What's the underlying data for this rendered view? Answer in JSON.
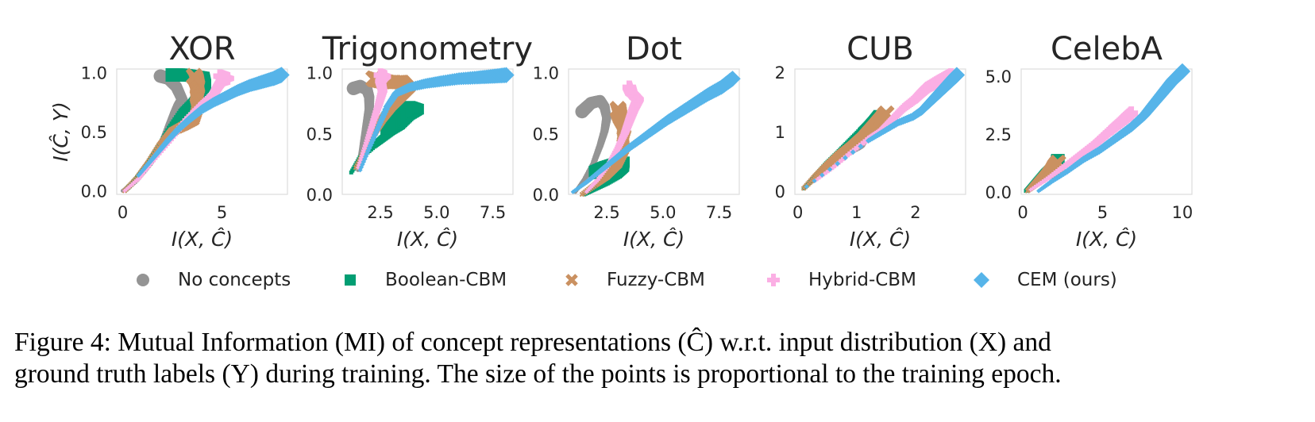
{
  "figure": {
    "caption_line1": "Figure 4: Mutual Information (MI) of concept representations (Ĉ) w.r.t. input distribution (X) and",
    "caption_line2": "ground truth labels (Y) during training. The size of the points is proportional to the training epoch."
  },
  "legend": [
    {
      "label": "No concepts",
      "marker": "circle",
      "color": "#949494"
    },
    {
      "label": "Boolean-CBM",
      "marker": "square",
      "color": "#029e73"
    },
    {
      "label": "Fuzzy-CBM",
      "marker": "x",
      "color": "#ca9161"
    },
    {
      "label": "Hybrid-CBM",
      "marker": "plus",
      "color": "#fbafe4"
    },
    {
      "label": "CEM (ours)",
      "marker": "diamond",
      "color": "#56b4e9"
    }
  ],
  "chart_data": [
    {
      "type": "scatter",
      "title": "XOR",
      "xlabel": "I(X, Ĉ)",
      "ylabel": "I(Ĉ, Y)",
      "xlim": [
        -0.3,
        8.3
      ],
      "ylim": [
        -0.03,
        1.03
      ],
      "xticks": [
        0,
        5
      ],
      "xtick_labels": [
        "0",
        "5"
      ],
      "yticks": [
        0.0,
        0.5,
        1.0
      ],
      "ytick_labels": [
        "0.0",
        "0.5",
        "1.0"
      ],
      "grid": false,
      "series": [
        {
          "name": "No concepts",
          "x": [
            0.0,
            0.5,
            1.0,
            1.5,
            1.9,
            2.3,
            2.6,
            2.8,
            3.0,
            2.7,
            2.3,
            1.9
          ],
          "y": [
            0.0,
            0.06,
            0.17,
            0.28,
            0.36,
            0.53,
            0.65,
            0.72,
            0.77,
            0.88,
            0.95,
            0.97
          ]
        },
        {
          "name": "Boolean-CBM",
          "x": [
            0.1,
            0.6,
            1.2,
            1.8,
            2.4,
            3.0,
            3.5,
            3.9,
            4.2,
            4.1,
            3.6,
            3.0,
            2.5
          ],
          "y": [
            0.0,
            0.08,
            0.2,
            0.35,
            0.52,
            0.66,
            0.74,
            0.82,
            0.9,
            0.96,
            0.97,
            0.98,
            0.98
          ]
        },
        {
          "name": "Fuzzy-CBM",
          "x": [
            0.1,
            0.7,
            1.3,
            1.9,
            2.5,
            3.1,
            3.6,
            3.8,
            3.7,
            3.8,
            3.7,
            3.6
          ],
          "y": [
            0.0,
            0.1,
            0.23,
            0.38,
            0.5,
            0.55,
            0.6,
            0.72,
            0.8,
            0.88,
            0.94,
            0.97
          ]
        },
        {
          "name": "Hybrid-CBM",
          "x": [
            0.1,
            0.8,
            1.6,
            2.4,
            3.2,
            4.0,
            4.6,
            4.8,
            5.0,
            5.3,
            4.9
          ],
          "y": [
            0.0,
            0.1,
            0.27,
            0.43,
            0.6,
            0.73,
            0.82,
            0.88,
            0.93,
            0.95,
            0.97
          ]
        },
        {
          "name": "CEM (ours)",
          "x": [
            0.8,
            1.3,
            1.8,
            2.3,
            2.8,
            3.4,
            4.0,
            4.6,
            5.2,
            5.8,
            6.4,
            7.0,
            7.6,
            8.0
          ],
          "y": [
            0.13,
            0.23,
            0.33,
            0.43,
            0.52,
            0.61,
            0.69,
            0.75,
            0.8,
            0.85,
            0.89,
            0.92,
            0.95,
            0.98
          ]
        }
      ]
    },
    {
      "type": "scatter",
      "title": "Trigonometry",
      "xlabel": "I(X, Ĉ)",
      "ylabel": "",
      "xlim": [
        0.8,
        8.4
      ],
      "ylim": [
        0.0,
        1.03
      ],
      "xticks": [
        2.5,
        5.0,
        7.5
      ],
      "xtick_labels": [
        "2.5",
        "5.0",
        "7.5"
      ],
      "yticks": [
        0.0,
        0.5,
        1.0
      ],
      "ytick_labels": [
        "0.0",
        "0.5",
        "1.0"
      ],
      "grid": false,
      "series": [
        {
          "name": "No concepts",
          "x": [
            1.5,
            1.6,
            1.7,
            1.8,
            1.9,
            2.0,
            2.0,
            1.9,
            1.6,
            1.3
          ],
          "y": [
            0.2,
            0.3,
            0.4,
            0.5,
            0.6,
            0.7,
            0.8,
            0.86,
            0.89,
            0.87
          ]
        },
        {
          "name": "Boolean-CBM",
          "x": [
            1.2,
            1.6,
            2.2,
            2.6,
            3.0,
            3.4,
            3.8,
            4.2,
            3.8,
            3.2,
            2.8
          ],
          "y": [
            0.18,
            0.3,
            0.4,
            0.46,
            0.52,
            0.57,
            0.65,
            0.7,
            0.72,
            0.64,
            0.55
          ]
        },
        {
          "name": "Fuzzy-CBM",
          "x": [
            1.4,
            1.8,
            2.2,
            2.6,
            3.0,
            3.4,
            3.8,
            3.5,
            3.0,
            2.6,
            2.2
          ],
          "y": [
            0.22,
            0.35,
            0.5,
            0.62,
            0.72,
            0.8,
            0.88,
            0.93,
            0.92,
            0.93,
            0.95
          ]
        },
        {
          "name": "Hybrid-CBM",
          "x": [
            1.5,
            1.8,
            2.1,
            2.4,
            2.6,
            2.5,
            2.7,
            2.5
          ],
          "y": [
            0.22,
            0.38,
            0.55,
            0.72,
            0.85,
            0.93,
            0.97,
            0.98
          ]
        },
        {
          "name": "CEM (ours)",
          "x": [
            1.6,
            2.0,
            2.4,
            2.8,
            3.2,
            3.8,
            4.5,
            5.2,
            6.0,
            6.8,
            7.5,
            8.1
          ],
          "y": [
            0.2,
            0.38,
            0.55,
            0.72,
            0.83,
            0.88,
            0.91,
            0.93,
            0.95,
            0.96,
            0.97,
            0.98
          ]
        }
      ]
    },
    {
      "type": "scatter",
      "title": "Dot",
      "xlabel": "I(X, Ĉ)",
      "ylabel": "",
      "xlim": [
        0.8,
        8.4
      ],
      "ylim": [
        0.0,
        1.03
      ],
      "xticks": [
        2.5,
        5.0,
        7.5
      ],
      "xtick_labels": [
        "2.5",
        "5.0",
        "7.5"
      ],
      "yticks": [
        0.0,
        0.5,
        1.0
      ],
      "ytick_labels": [
        "0.0",
        "0.5",
        "1.0"
      ],
      "grid": false,
      "series": [
        {
          "name": "No concepts",
          "x": [
            1.1,
            1.5,
            1.9,
            2.2,
            2.4,
            2.5,
            2.4,
            2.2,
            1.8,
            1.4
          ],
          "y": [
            0.02,
            0.12,
            0.25,
            0.4,
            0.52,
            0.63,
            0.72,
            0.77,
            0.75,
            0.68
          ]
        },
        {
          "name": "Boolean-CBM",
          "x": [
            1.5,
            2.0,
            2.5,
            3.0,
            3.3,
            3.3,
            2.8,
            2.4,
            2.0
          ],
          "y": [
            0.0,
            0.05,
            0.1,
            0.16,
            0.22,
            0.27,
            0.25,
            0.22,
            0.18
          ]
        },
        {
          "name": "Fuzzy-CBM",
          "x": [
            1.4,
            2.0,
            2.5,
            3.0,
            3.3,
            3.2,
            3.3,
            3.1,
            3.0
          ],
          "y": [
            0.0,
            0.08,
            0.15,
            0.25,
            0.38,
            0.47,
            0.55,
            0.63,
            0.7
          ]
        },
        {
          "name": "Hybrid-CBM",
          "x": [
            1.6,
            2.1,
            2.6,
            3.0,
            3.3,
            3.5,
            3.7,
            3.9,
            3.6,
            3.5
          ],
          "y": [
            0.02,
            0.12,
            0.25,
            0.38,
            0.5,
            0.6,
            0.7,
            0.78,
            0.83,
            0.88
          ]
        },
        {
          "name": "CEM (ours)",
          "x": [
            1.0,
            1.6,
            2.2,
            2.8,
            3.4,
            4.0,
            4.6,
            5.2,
            5.8,
            6.4,
            7.0,
            7.6,
            8.1
          ],
          "y": [
            0.02,
            0.1,
            0.19,
            0.28,
            0.37,
            0.45,
            0.53,
            0.61,
            0.68,
            0.75,
            0.82,
            0.88,
            0.95
          ]
        }
      ]
    },
    {
      "type": "scatter",
      "title": "CUB",
      "xlabel": "I(X, Ĉ)",
      "ylabel": "",
      "xlim": [
        -0.05,
        2.85
      ],
      "ylim": [
        -0.05,
        2.05
      ],
      "xticks": [
        0,
        1,
        2
      ],
      "xtick_labels": [
        "0",
        "1",
        "2"
      ],
      "yticks": [
        0,
        1,
        2
      ],
      "ytick_labels": [
        "0",
        "1",
        "2"
      ],
      "grid": false,
      "series": [
        {
          "name": "No concepts",
          "x": [
            0.1,
            0.2,
            0.3,
            0.4,
            0.5,
            0.6,
            0.7,
            0.8,
            0.9,
            1.0,
            1.05
          ],
          "y": [
            0.05,
            0.15,
            0.25,
            0.35,
            0.44,
            0.52,
            0.59,
            0.65,
            0.72,
            0.78,
            0.82
          ]
        },
        {
          "name": "Boolean-CBM",
          "x": [
            0.1,
            0.3,
            0.5,
            0.7,
            0.9,
            1.1,
            1.2,
            1.3,
            1.4
          ],
          "y": [
            0.05,
            0.25,
            0.45,
            0.62,
            0.8,
            0.98,
            1.06,
            1.15,
            1.25
          ]
        },
        {
          "name": "Fuzzy-CBM",
          "x": [
            0.1,
            0.3,
            0.5,
            0.7,
            0.9,
            1.1,
            1.3,
            1.45,
            1.5
          ],
          "y": [
            0.05,
            0.25,
            0.43,
            0.6,
            0.74,
            0.9,
            1.1,
            1.25,
            1.3
          ]
        },
        {
          "name": "Hybrid-CBM",
          "x": [
            0.3,
            0.6,
            0.9,
            1.2,
            1.4,
            1.6,
            1.8,
            2.0,
            2.1,
            2.2,
            2.4,
            2.6
          ],
          "y": [
            0.18,
            0.4,
            0.65,
            0.88,
            1.0,
            1.2,
            1.4,
            1.55,
            1.65,
            1.74,
            1.85,
            1.95
          ]
        },
        {
          "name": "CEM (ours)",
          "x": [
            0.15,
            1.2,
            1.45,
            1.7,
            1.95,
            2.1,
            2.2,
            2.3,
            2.4,
            2.5,
            2.6,
            2.7
          ],
          "y": [
            0.08,
            0.85,
            1.0,
            1.15,
            1.25,
            1.35,
            1.45,
            1.55,
            1.65,
            1.75,
            1.85,
            1.95
          ]
        }
      ]
    },
    {
      "type": "scatter",
      "title": "CelebA",
      "xlabel": "I(X, Ĉ)",
      "ylabel": "",
      "xlim": [
        -0.1,
        10.6
      ],
      "ylim": [
        -0.1,
        5.3
      ],
      "xticks": [
        0,
        5,
        10
      ],
      "xtick_labels": [
        "0",
        "5",
        "10"
      ],
      "yticks": [
        0.0,
        2.5,
        5.0
      ],
      "ytick_labels": [
        "0.0",
        "2.5",
        "5.0"
      ],
      "grid": false,
      "series": [
        {
          "name": "No concepts",
          "x": [
            0.3,
            0.6,
            0.9,
            1.2,
            1.5,
            1.8,
            2.1
          ],
          "y": [
            0.05,
            0.25,
            0.42,
            0.58,
            0.72,
            0.85,
            0.95
          ]
        },
        {
          "name": "Boolean-CBM",
          "x": [
            0.2,
            0.6,
            1.0,
            1.4,
            1.8,
            2.1,
            2.2
          ],
          "y": [
            0.05,
            0.3,
            0.55,
            0.8,
            1.0,
            1.2,
            1.35
          ]
        },
        {
          "name": "Fuzzy-CBM",
          "x": [
            0.3,
            0.7,
            1.1,
            1.5,
            1.8,
            2.0,
            2.2
          ],
          "y": [
            0.05,
            0.3,
            0.55,
            0.8,
            1.0,
            1.15,
            1.25
          ]
        },
        {
          "name": "Hybrid-CBM",
          "x": [
            0.5,
            1.5,
            2.5,
            3.5,
            4.5,
            5.5,
            6.2,
            6.8
          ],
          "y": [
            0.1,
            0.55,
            1.05,
            1.55,
            2.05,
            2.65,
            3.05,
            3.4
          ]
        },
        {
          "name": "CEM (ours)",
          "x": [
            1.0,
            1.8,
            2.8,
            3.8,
            4.8,
            5.8,
            6.8,
            7.6,
            8.2,
            8.8,
            9.4,
            10.0
          ],
          "y": [
            0.05,
            0.45,
            0.9,
            1.4,
            1.8,
            2.3,
            2.8,
            3.3,
            3.8,
            4.3,
            4.8,
            5.2
          ]
        }
      ]
    }
  ]
}
